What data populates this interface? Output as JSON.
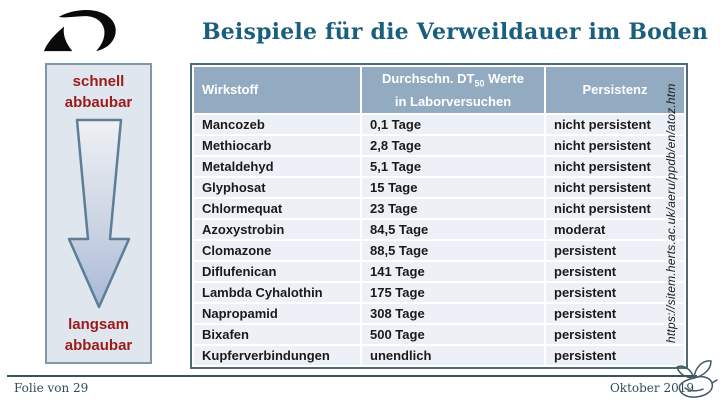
{
  "slide": {
    "title": "Beispiele für die Verweildauer im Boden",
    "footer_left": "Folie von 29",
    "footer_right": "Oktober 2019",
    "source_url": "https://sitem.herts.ac.uk/aeru/ppdb/en/atoz.htm"
  },
  "degradation_scale": {
    "top_label_line1": "schnell",
    "top_label_line2": "abbaubar",
    "bottom_label_line1": "langsam",
    "bottom_label_line2": "abbaubar"
  },
  "table": {
    "headers": {
      "col1": "Wirkstoff",
      "col2_pre": "Durchschn. DT",
      "col2_sub": "50",
      "col2_post": " Werte",
      "col2_line2": "in Laborversuchen",
      "col3": "Persistenz"
    },
    "rows": [
      [
        "Mancozeb",
        "0,1 Tage",
        "nicht persistent"
      ],
      [
        "Methiocarb",
        "2,8 Tage",
        "nicht persistent"
      ],
      [
        "Metaldehyd",
        "5,1 Tage",
        "nicht persistent"
      ],
      [
        "Glyphosat",
        "15 Tage",
        "nicht persistent"
      ],
      [
        "Chlormequat",
        "23 Tage",
        "nicht persistent"
      ],
      [
        "Azoxystrobin",
        "84,5 Tage",
        "moderat"
      ],
      [
        "Clomazone",
        "88,5 Tage",
        "persistent"
      ],
      [
        "Diflufenican",
        "141 Tage",
        "persistent"
      ],
      [
        "Lambda Cyhalothin",
        "175 Tage",
        "persistent"
      ],
      [
        "Napropamid",
        "308 Tage",
        "persistent"
      ],
      [
        "Bixafen",
        "500 Tage",
        "persistent"
      ],
      [
        "Kupferverbindungen",
        "unendlich",
        "persistent"
      ]
    ]
  },
  "chart_data": {
    "type": "table",
    "title": "Beispiele für die Verweildauer im Boden",
    "columns": [
      "Wirkstoff",
      "Durchschn. DT50 Werte in Laborversuchen",
      "Persistenz"
    ],
    "rows": [
      [
        "Mancozeb",
        "0,1 Tage",
        "nicht persistent"
      ],
      [
        "Methiocarb",
        "2,8 Tage",
        "nicht persistent"
      ],
      [
        "Metaldehyd",
        "5,1 Tage",
        "nicht persistent"
      ],
      [
        "Glyphosat",
        "15 Tage",
        "nicht persistent"
      ],
      [
        "Chlormequat",
        "23 Tage",
        "nicht persistent"
      ],
      [
        "Azoxystrobin",
        "84,5 Tage",
        "moderat"
      ],
      [
        "Clomazone",
        "88,5 Tage",
        "persistent"
      ],
      [
        "Diflufenican",
        "141 Tage",
        "persistent"
      ],
      [
        "Lambda Cyhalothin",
        "175 Tage",
        "persistent"
      ],
      [
        "Napropamid",
        "308 Tage",
        "persistent"
      ],
      [
        "Bixafen",
        "500 Tage",
        "persistent"
      ],
      [
        "Kupferverbindungen",
        "unendlich",
        "persistent"
      ]
    ]
  },
  "colors": {
    "title": "#1a5f7e",
    "table_header_bg": "#93abc0",
    "table_row_bg": "#edf1f7",
    "table_border": "#4f6b7a",
    "panel_bg": "#dfe6ee",
    "panel_border": "#7f97a8",
    "degrade_label": "#9b1b1b",
    "arrow_stroke": "#5e7e96",
    "footer": "#2e4d5a"
  }
}
